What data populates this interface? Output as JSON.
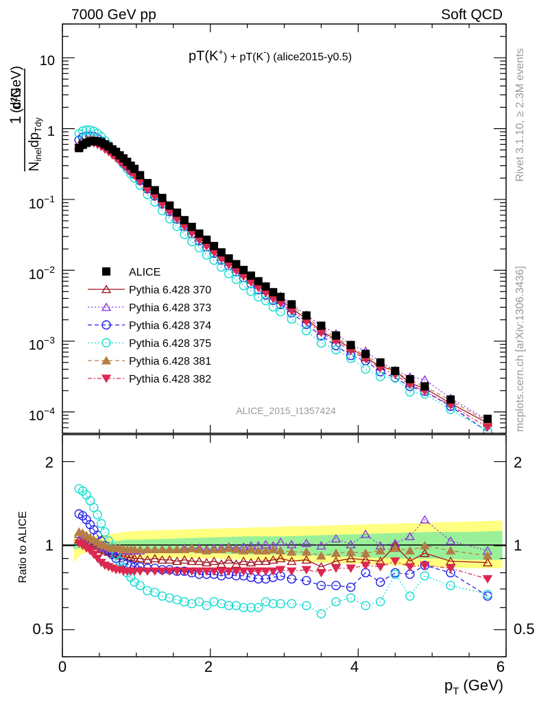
{
  "header": {
    "left": "7000 GeV pp",
    "right": "Soft QCD"
  },
  "side_labels": {
    "rivet": "Rivet 3.1.10, ≥ 2.3M events",
    "mcplots": "mcplots.cern.ch [arXiv:1306.3436]"
  },
  "plot_title": {
    "main": "pT(K",
    "plus": "+",
    "mid": ") + pT(K",
    "minus": "-",
    "tail": ") (alice2015-y0.5)"
  },
  "analysis_tag": "ALICE_2015_I1357424",
  "y_label_top": {
    "prefix": "1",
    "num": "d²N",
    "den_a": "N",
    "den_inel": "inel",
    "den_b": "dp",
    "den_c": "Tdy",
    "unit": "(c/GeV)"
  },
  "y_label_bottom": "Ratio to ALICE",
  "x_label": {
    "p": "p",
    "sub": "T",
    "unit": "(GeV)"
  },
  "ticks": {
    "x": [
      "0",
      "2",
      "4",
      "6"
    ],
    "y_top": [
      {
        "base": "10",
        "exp": "",
        "v": 10
      },
      {
        "base": "1",
        "exp": "",
        "v": 1
      },
      {
        "base": "10",
        "exp": "−1",
        "v": 0.1
      },
      {
        "base": "10",
        "exp": "−2",
        "v": 0.01
      },
      {
        "base": "10",
        "exp": "−3",
        "v": 0.001
      },
      {
        "base": "10",
        "exp": "−4",
        "v": 0.0001
      }
    ],
    "y_bottom": [
      "2",
      "1",
      "0.5"
    ]
  },
  "colors": {
    "alice": "#000000",
    "p370": "#a0141e",
    "p373": "#8c32dc",
    "p374": "#1e1ee6",
    "p375": "#14dcd2",
    "p381": "#b47d46",
    "p382": "#dc2850",
    "band_yellow": "#ffff80",
    "band_green": "#99f099"
  },
  "chart_data": {
    "type": "scatter",
    "x_label": "pT (GeV)",
    "xlim": [
      0,
      6
    ],
    "top": {
      "scale": "log",
      "ylim": [
        5e-05,
        30
      ]
    },
    "bottom": {
      "scale": "log",
      "ylim": [
        0.4,
        2.5
      ],
      "reference": 1
    },
    "legend": [
      {
        "key": "alice",
        "label": "ALICE"
      },
      {
        "key": "p370",
        "label": "Pythia 6.428 370"
      },
      {
        "key": "p373",
        "label": "Pythia 6.428 373"
      },
      {
        "key": "p374",
        "label": "Pythia 6.428 374"
      },
      {
        "key": "p375",
        "label": "Pythia 6.428 375"
      },
      {
        "key": "p381",
        "label": "Pythia 6.428 381"
      },
      {
        "key": "p382",
        "label": "Pythia 6.428 382"
      }
    ],
    "x": [
      0.225,
      0.275,
      0.325,
      0.375,
      0.425,
      0.475,
      0.525,
      0.575,
      0.625,
      0.675,
      0.725,
      0.775,
      0.825,
      0.875,
      0.925,
      0.975,
      1.05,
      1.15,
      1.25,
      1.35,
      1.45,
      1.55,
      1.65,
      1.75,
      1.85,
      1.95,
      2.05,
      2.15,
      2.25,
      2.35,
      2.45,
      2.55,
      2.65,
      2.75,
      2.85,
      2.95,
      3.1,
      3.3,
      3.5,
      3.7,
      3.9,
      4.1,
      4.3,
      4.5,
      4.7,
      4.9,
      5.25,
      5.75
    ],
    "alice": [
      0.53,
      0.59,
      0.63,
      0.66,
      0.67,
      0.66,
      0.64,
      0.6,
      0.56,
      0.51,
      0.47,
      0.42,
      0.38,
      0.34,
      0.3,
      0.27,
      0.22,
      0.17,
      0.135,
      0.105,
      0.082,
      0.065,
      0.051,
      0.041,
      0.033,
      0.027,
      0.022,
      0.0179,
      0.0147,
      0.0122,
      0.0101,
      0.0084,
      0.007,
      0.0059,
      0.0049,
      0.0042,
      0.0033,
      0.0023,
      0.00165,
      0.0012,
      0.00088,
      0.00066,
      0.0005,
      0.00038,
      0.00029,
      0.00023,
      0.00015,
      8e-05
    ],
    "ratio_band": {
      "x": [
        0.15,
        0.25,
        0.35,
        0.45,
        0.55,
        0.65,
        0.75,
        0.85,
        1.0,
        1.5,
        2.0,
        2.5,
        3.0,
        3.5,
        4.0,
        4.5,
        5.0,
        5.5,
        5.95
      ],
      "yellow_lo": [
        0.87,
        0.93,
        0.95,
        0.95,
        0.93,
        0.92,
        0.91,
        0.9,
        0.9,
        0.9,
        0.9,
        0.89,
        0.88,
        0.87,
        0.86,
        0.85,
        0.84,
        0.83,
        0.83
      ],
      "yellow_hi": [
        1.1,
        1.08,
        1.08,
        1.08,
        1.09,
        1.1,
        1.11,
        1.12,
        1.13,
        1.14,
        1.15,
        1.16,
        1.17,
        1.18,
        1.19,
        1.2,
        1.21,
        1.22,
        1.23
      ],
      "green_lo": [
        0.97,
        0.98,
        0.98,
        0.98,
        0.97,
        0.96,
        0.95,
        0.95,
        0.95,
        0.95,
        0.94,
        0.93,
        0.93,
        0.92,
        0.91,
        0.9,
        0.9,
        0.89,
        0.89
      ],
      "green_hi": [
        1.03,
        1.03,
        1.03,
        1.03,
        1.03,
        1.04,
        1.04,
        1.05,
        1.05,
        1.06,
        1.07,
        1.08,
        1.08,
        1.09,
        1.1,
        1.11,
        1.12,
        1.12,
        1.13
      ]
    },
    "series": [
      {
        "key": "p370",
        "name": "Pythia 6.428 370",
        "marker": "triangle-open",
        "dash": "",
        "ratio": [
          1.05,
          1.04,
          1.03,
          1.02,
          1.0,
          0.98,
          0.97,
          0.96,
          0.95,
          0.94,
          0.93,
          0.92,
          0.92,
          0.91,
          0.91,
          0.9,
          0.9,
          0.89,
          0.9,
          0.89,
          0.89,
          0.88,
          0.89,
          0.88,
          0.88,
          0.87,
          0.88,
          0.86,
          0.89,
          0.86,
          0.88,
          0.87,
          0.88,
          0.88,
          0.89,
          0.9,
          0.88,
          0.89,
          0.84,
          0.88,
          0.9,
          0.89,
          0.88,
          1.0,
          0.88,
          0.94,
          0.88,
          0.87
        ]
      },
      {
        "key": "p373",
        "name": "Pythia 6.428 373",
        "marker": "triangle-open",
        "dash": "2,3",
        "ratio": [
          1.1,
          1.09,
          1.07,
          1.05,
          1.03,
          1.01,
          0.99,
          0.98,
          0.97,
          0.97,
          0.96,
          0.96,
          0.96,
          0.96,
          0.96,
          0.96,
          0.96,
          0.97,
          0.97,
          0.97,
          0.97,
          0.97,
          0.98,
          0.98,
          0.98,
          0.97,
          0.98,
          0.98,
          0.99,
          0.98,
          0.99,
          1.0,
          1.0,
          1.01,
          1.0,
          1.03,
          1.01,
          1.02,
          1.0,
          1.06,
          1.01,
          1.1,
          1.0,
          1.02,
          1.08,
          1.24,
          1.04,
          0.96
        ]
      },
      {
        "key": "p374",
        "name": "Pythia 6.428 374",
        "marker": "circle-open",
        "dash": "6,4",
        "ratio": [
          1.3,
          1.28,
          1.24,
          1.19,
          1.14,
          1.09,
          1.04,
          1.0,
          0.96,
          0.93,
          0.9,
          0.88,
          0.87,
          0.86,
          0.85,
          0.84,
          0.84,
          0.83,
          0.83,
          0.82,
          0.82,
          0.81,
          0.81,
          0.8,
          0.79,
          0.79,
          0.79,
          0.78,
          0.79,
          0.78,
          0.78,
          0.77,
          0.76,
          0.76,
          0.77,
          0.78,
          0.76,
          0.75,
          0.72,
          0.72,
          0.71,
          0.8,
          0.74,
          0.8,
          0.79,
          0.85,
          0.8,
          0.66
        ]
      },
      {
        "key": "p375",
        "name": "Pythia 6.428 375",
        "marker": "circle-open",
        "dash": "2,3",
        "ratio": [
          1.6,
          1.57,
          1.52,
          1.45,
          1.37,
          1.29,
          1.2,
          1.12,
          1.04,
          0.98,
          0.93,
          0.88,
          0.83,
          0.8,
          0.77,
          0.74,
          0.72,
          0.69,
          0.68,
          0.66,
          0.65,
          0.64,
          0.63,
          0.62,
          0.63,
          0.61,
          0.63,
          0.62,
          0.61,
          0.61,
          0.6,
          0.6,
          0.6,
          0.63,
          0.62,
          0.62,
          0.62,
          0.61,
          0.57,
          0.63,
          0.65,
          0.61,
          0.63,
          0.79,
          0.66,
          0.78,
          0.72,
          0.67
        ]
      },
      {
        "key": "p381",
        "name": "Pythia 6.428 381",
        "marker": "triangle-filled",
        "dash": "6,4",
        "ratio": [
          1.12,
          1.11,
          1.09,
          1.07,
          1.05,
          1.03,
          1.01,
          1.0,
          0.99,
          0.98,
          0.98,
          0.98,
          0.97,
          0.97,
          0.97,
          0.97,
          0.97,
          0.97,
          0.97,
          0.97,
          0.97,
          0.97,
          0.97,
          0.98,
          0.97,
          0.96,
          0.97,
          0.97,
          0.98,
          0.97,
          0.96,
          0.97,
          0.96,
          0.96,
          0.97,
          0.96,
          0.95,
          0.95,
          0.92,
          0.94,
          0.95,
          0.94,
          0.96,
          0.98,
          0.96,
          1.0,
          0.96,
          0.92
        ]
      },
      {
        "key": "p382",
        "name": "Pythia 6.428 382",
        "marker": "triangle-down-filled",
        "dash": "6,3,2,3",
        "ratio": [
          1.02,
          1.0,
          0.98,
          0.96,
          0.93,
          0.9,
          0.87,
          0.85,
          0.84,
          0.83,
          0.82,
          0.82,
          0.81,
          0.81,
          0.81,
          0.81,
          0.81,
          0.81,
          0.81,
          0.81,
          0.81,
          0.81,
          0.81,
          0.81,
          0.81,
          0.81,
          0.81,
          0.81,
          0.81,
          0.81,
          0.81,
          0.81,
          0.81,
          0.81,
          0.81,
          0.82,
          0.81,
          0.82,
          0.8,
          0.83,
          0.83,
          0.85,
          0.84,
          0.88,
          0.84,
          0.85,
          0.83,
          0.76
        ]
      }
    ]
  }
}
